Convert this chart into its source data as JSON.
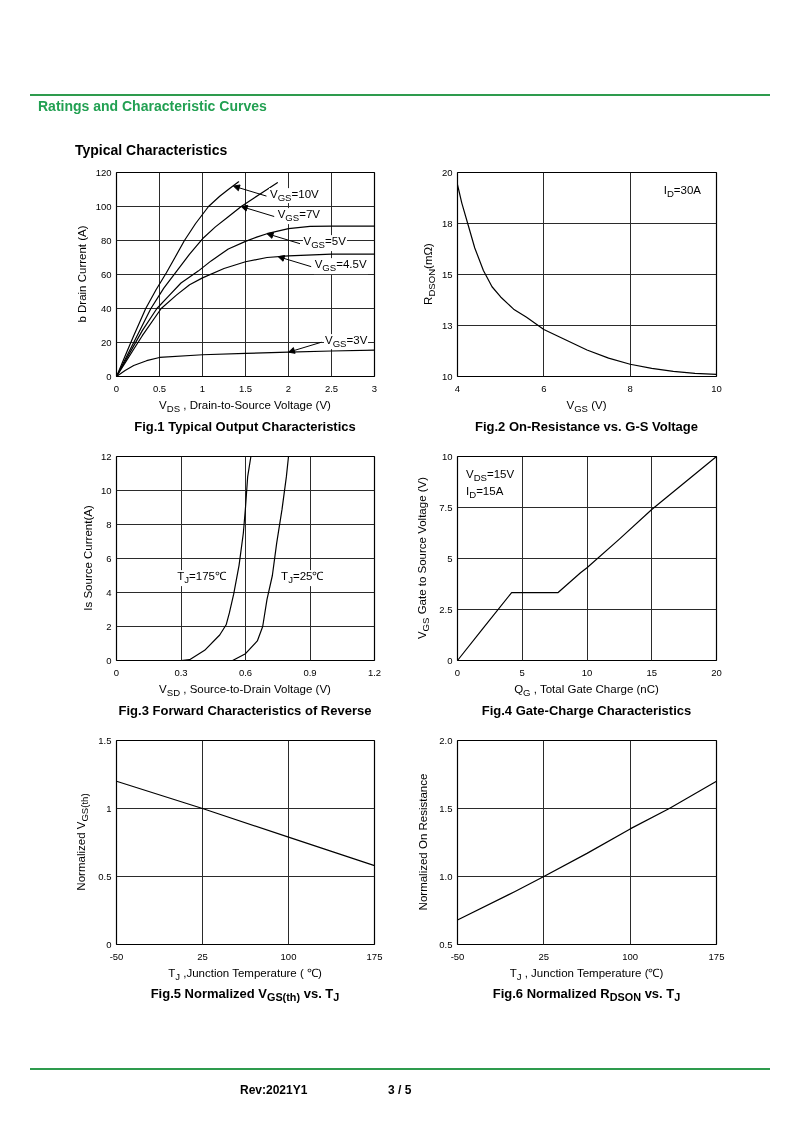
{
  "chart_data": [
    {
      "type": "other",
      "title": "Ratings and Characteristic Curves",
      "subtitle": "Typical Characteristics"
    },
    {
      "type": "line",
      "title": "Fig.1 Typical Output Characteristics",
      "xlabel": "V$_{DS}$ , Drain-to-Source Voltage (V)",
      "ylabel": "b Drain Current (A)",
      "xlim": [
        0,
        3
      ],
      "ylim": [
        0,
        120
      ],
      "xticks": [
        0,
        0.5,
        1,
        1.5,
        2,
        2.5,
        3
      ],
      "yticks": [
        0,
        20,
        40,
        60,
        80,
        100,
        120
      ],
      "grid": true,
      "series": [
        {
          "color": "#000000",
          "x": [
            0,
            0.1,
            0.2,
            0.34,
            0.46,
            0.58,
            0.68,
            0.79,
            0.92,
            1.07,
            1.2,
            1.3,
            1.42
          ],
          "values": [
            0,
            12,
            24,
            40,
            51,
            61,
            70,
            80,
            90,
            100,
            106,
            110,
            114.5
          ]
        },
        {
          "color": "#000000",
          "x": [
            0,
            0.1,
            0.2,
            0.4,
            0.55,
            0.7,
            0.85,
            1.0,
            1.15,
            1.3,
            1.45,
            1.6,
            1.75,
            1.87
          ],
          "values": [
            0,
            10,
            20,
            40,
            52,
            62,
            72,
            81,
            88,
            94,
            100,
            105,
            110,
            114
          ]
        },
        {
          "color": "#000000",
          "x": [
            0,
            0.1,
            0.2,
            0.3,
            0.47,
            0.6,
            0.75,
            0.95,
            1.1,
            1.3,
            1.5,
            1.63,
            1.75,
            2.0,
            2.25,
            2.5,
            3.0
          ],
          "values": [
            0,
            9,
            18,
            27,
            40,
            47,
            55,
            62,
            68,
            75,
            79.5,
            82,
            84,
            87,
            88.3,
            88.5,
            88.5
          ]
        },
        {
          "color": "#000000",
          "x": [
            0,
            0.1,
            0.2,
            0.3,
            0.52,
            0.7,
            0.85,
            1.0,
            1.25,
            1.5,
            1.75,
            2.0,
            2.5,
            3.0
          ],
          "values": [
            0,
            8,
            16,
            24,
            40,
            48,
            54,
            58,
            63.5,
            67.5,
            70,
            71,
            72,
            72
          ]
        },
        {
          "color": "#000000",
          "x": [
            0,
            0.1,
            0.2,
            0.35,
            0.5,
            1.0,
            1.5,
            2.0,
            2.5,
            3.0
          ],
          "values": [
            0,
            3.5,
            6.5,
            9.3,
            11.2,
            12.8,
            13.6,
            14.3,
            15,
            15.5
          ]
        }
      ],
      "annotations": [
        {
          "text": "V$_{GS}$=10V",
          "x": 1.36,
          "y": 112
        },
        {
          "text": "V$_{GS}$=7V",
          "x": 1.45,
          "y": 100
        },
        {
          "text": "V$_{GS}$=5V",
          "x": 1.75,
          "y": 84
        },
        {
          "text": "V$_{GS}$=4.5V",
          "x": 1.88,
          "y": 70.5
        },
        {
          "text": "V$_{GS}$=3V",
          "x": 2.0,
          "y": 14.3
        }
      ]
    },
    {
      "type": "line",
      "title": "Fig.2 On-Resistance vs. G-S Voltage",
      "xlabel": "V$_{GS}$ (V)",
      "ylabel": "R$_{DSON}$(mΩ)",
      "xlim": [
        4,
        10
      ],
      "ylim": [
        10,
        20
      ],
      "xticks": [
        4,
        6,
        8,
        10
      ],
      "yticks": [
        10,
        {
          "value": 12.5,
          "label": "13"
        },
        15,
        {
          "value": 17.5,
          "label": "18"
        },
        20
      ],
      "grid": true,
      "series": [
        {
          "color": "#000000",
          "x": [
            4,
            4.1,
            4.25,
            4.4,
            4.6,
            4.8,
            5,
            5.3,
            5.6,
            6,
            6.5,
            7,
            7.5,
            8,
            8.5,
            9,
            9.5,
            10
          ],
          "values": [
            19.4,
            18.5,
            17.4,
            16.3,
            15.2,
            14.4,
            13.9,
            13.3,
            12.9,
            12.3,
            11.8,
            11.3,
            10.9,
            10.6,
            10.4,
            10.25,
            10.15,
            10.1
          ]
        }
      ],
      "annotations": [
        "I$_{D}$=30A"
      ]
    },
    {
      "type": "line",
      "title": "Fig.3 Forward Characteristics of Reverse",
      "xlabel": "V$_{SD}$ , Source-to-Drain Voltage (V)",
      "ylabel": "Is Source Current(A)",
      "xlim": [
        0,
        1.2
      ],
      "ylim": [
        0,
        12
      ],
      "xticks": [
        0,
        0.3,
        0.6,
        0.9,
        1.2
      ],
      "yticks": [
        0,
        2,
        4,
        6,
        8,
        10,
        12
      ],
      "grid": true,
      "series": [
        {
          "name": "T$_{J}$=175℃",
          "color": "#000000",
          "x": [
            0.3,
            0.34,
            0.41,
            0.48,
            0.51,
            0.525,
            0.545,
            0.57,
            0.59,
            0.6,
            0.61,
            0.625
          ],
          "values": [
            0,
            0.05,
            0.6,
            1.5,
            2.1,
            2.8,
            3.9,
            5.6,
            7.5,
            9,
            10.8,
            12
          ]
        },
        {
          "name": "T$_{J}$=25℃",
          "color": "#000000",
          "x": [
            0.54,
            0.6,
            0.655,
            0.68,
            0.7,
            0.725,
            0.745,
            0.77,
            0.79,
            0.8
          ],
          "values": [
            0,
            0.4,
            1.15,
            2,
            3.6,
            5,
            6.9,
            8.9,
            10.8,
            12
          ]
        }
      ]
    },
    {
      "type": "line",
      "title": "Fig.4 Gate-Charge Characteristics",
      "xlabel": "Q$_{G}$ , Total Gate Charge (nC)",
      "ylabel": "V$_{GS}$ Gate to Source Voltage (V)",
      "xlim": [
        0,
        20
      ],
      "ylim": [
        0,
        10
      ],
      "xticks": [
        0,
        5,
        10,
        15,
        20
      ],
      "yticks": [
        0,
        2.5,
        5,
        7.5,
        10
      ],
      "grid": true,
      "series": [
        {
          "color": "#000000",
          "x": [
            0,
            2,
            4.18,
            7.77,
            9.5,
            10,
            12.5,
            15,
            17.5,
            20
          ],
          "values": [
            0,
            1.6,
            3.33,
            3.33,
            4.3,
            4.55,
            5.95,
            7.4,
            8.7,
            10
          ]
        }
      ],
      "annotations": [
        "V$_{DS}$=15V",
        "I$_{D}$=15A"
      ]
    },
    {
      "type": "line",
      "title": "Fig.5 Normalized V$_{GS(th)}$ vs. T$_{J}$",
      "xlabel": "T$_{J}$ ,Junction Temperature ( ℃)",
      "ylabel": "Normalized V$_{GS(th)}$",
      "xlim": [
        -50,
        175
      ],
      "ylim": [
        0,
        1.5
      ],
      "xticks": [
        -50,
        25,
        100,
        175
      ],
      "yticks": [
        0,
        0.5,
        1,
        1.5
      ],
      "grid": true,
      "series": [
        {
          "color": "#000000",
          "x": [
            -50,
            25,
            100,
            175
          ],
          "values": [
            1.2,
            1.0,
            0.79,
            0.58
          ]
        }
      ]
    },
    {
      "type": "line",
      "title": "Fig.6 Normalized R$_{DSON}$ vs. T$_{J}$",
      "xlabel": "T$_{J}$ , Junction Temperature (℃)",
      "ylabel": "Normalized On Resistance",
      "xlim": [
        -50,
        175
      ],
      "ylim": [
        0.5,
        2
      ],
      "xticks": [
        -50,
        25,
        100,
        175
      ],
      "yticks": [
        0.5,
        {
          "value": 1,
          "label": "1.0"
        },
        1.5,
        {
          "value": 2,
          "label": "2.0"
        }
      ],
      "grid": true,
      "series": [
        {
          "color": "#000000",
          "x": [
            -50,
            0,
            25,
            62.5,
            100,
            134,
            175
          ],
          "values": [
            0.68,
            0.89,
            1.0,
            1.17,
            1.35,
            1.5,
            1.7
          ]
        }
      ]
    },
    {
      "type": "other",
      "annotations": [
        "Rev:2021Y1",
        "3 / 5"
      ]
    }
  ]
}
